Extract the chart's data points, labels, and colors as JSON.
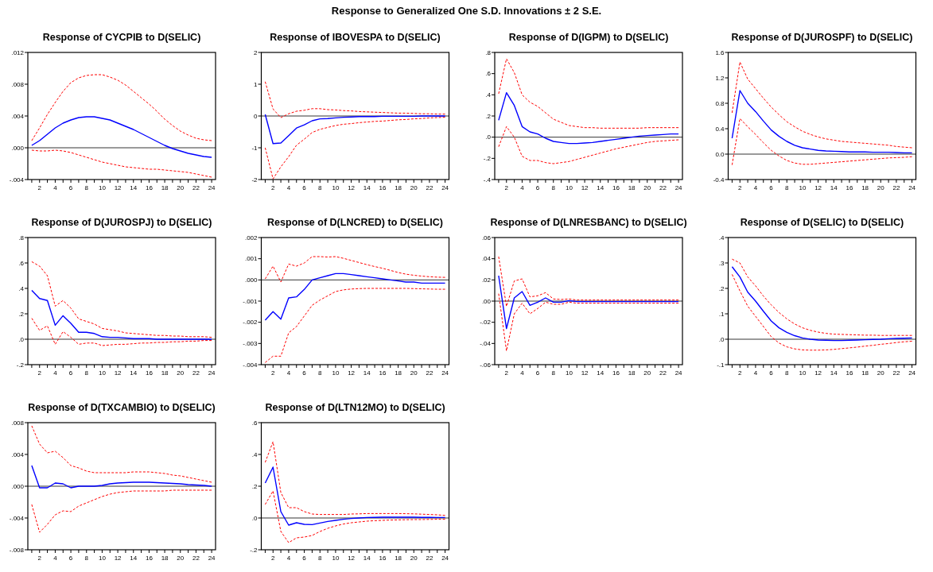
{
  "chart_data": [
    {
      "type": "line",
      "title": "Response of CYCPIB to D(SELIC)",
      "annotations": [
        "Response to Generalized One S.D. Innovations ± 2 S.E."
      ],
      "x": [
        1,
        2,
        3,
        4,
        5,
        6,
        7,
        8,
        9,
        10,
        11,
        12,
        13,
        14,
        15,
        16,
        17,
        18,
        19,
        20,
        21,
        22,
        23,
        24
      ],
      "xlim": [
        0.5,
        24.5
      ],
      "xticks": [
        {
          "value": 1,
          "label": null
        },
        2,
        {
          "value": 3,
          "label": null
        },
        4,
        {
          "value": 5,
          "label": null
        },
        6,
        {
          "value": 7,
          "label": null
        },
        8,
        {
          "value": 9,
          "label": null
        },
        10,
        {
          "value": 11,
          "label": null
        },
        12,
        {
          "value": 13,
          "label": null
        },
        14,
        {
          "value": 15,
          "label": null
        },
        16,
        {
          "value": 17,
          "label": null
        },
        18,
        {
          "value": 19,
          "label": null
        },
        20,
        {
          "value": 21,
          "label": null
        },
        22,
        {
          "value": 23,
          "label": null
        },
        24
      ],
      "ylim": [
        -0.004,
        0.012
      ],
      "yticks": [
        {
          "value": -0.004,
          "label": "-.004"
        },
        {
          "value": 0,
          "label": ".000"
        },
        {
          "value": 0.004,
          "label": ".004"
        },
        {
          "value": 0.008,
          "label": ".008"
        },
        {
          "value": 0.012,
          "label": ".012"
        }
      ],
      "ref_lines": [
        {
          "axis": "y",
          "value": 0,
          "color": "#000000"
        }
      ],
      "series": [
        {
          "color": "#0000ff",
          "line_style": "solid",
          "values": [
            0.0003,
            0.0009,
            0.0017,
            0.0025,
            0.0031,
            0.0035,
            0.0038,
            0.0039,
            0.0039,
            0.0037,
            0.0035,
            0.0031,
            0.0027,
            0.0023,
            0.0018,
            0.0013,
            0.0008,
            0.0003,
            -0.0001,
            -0.0004,
            -0.0007,
            -0.0009,
            -0.0011,
            -0.0012
          ]
        },
        {
          "color": "#ff0000",
          "line_style": "dashed",
          "values": [
            0.0009,
            0.0025,
            0.0042,
            0.0057,
            0.0071,
            0.0082,
            0.0088,
            0.0091,
            0.0092,
            0.0092,
            0.0089,
            0.0085,
            0.0079,
            0.0071,
            0.0063,
            0.0055,
            0.0046,
            0.0036,
            0.0028,
            0.0021,
            0.0016,
            0.0012,
            0.001,
            0.0009
          ]
        },
        {
          "color": "#ff0000",
          "line_style": "dashed",
          "values": [
            -0.0003,
            -0.0004,
            -0.0004,
            -0.0003,
            -0.0004,
            -0.0006,
            -0.0009,
            -0.0012,
            -0.0015,
            -0.0018,
            -0.002,
            -0.0022,
            -0.0024,
            -0.0025,
            -0.0026,
            -0.0027,
            -0.0027,
            -0.0028,
            -0.0029,
            -0.003,
            -0.0031,
            -0.0033,
            -0.0035,
            -0.0037
          ]
        }
      ]
    },
    {
      "type": "line",
      "title": "Response of IBOVESPA to D(SELIC)",
      "x": [
        1,
        2,
        3,
        4,
        5,
        6,
        7,
        8,
        9,
        10,
        11,
        12,
        13,
        14,
        15,
        16,
        17,
        18,
        19,
        20,
        21,
        22,
        23,
        24
      ],
      "xlim": [
        0.5,
        24.5
      ],
      "xticks": [
        {
          "value": 1,
          "label": null
        },
        2,
        {
          "value": 3,
          "label": null
        },
        4,
        {
          "value": 5,
          "label": null
        },
        6,
        {
          "value": 7,
          "label": null
        },
        8,
        {
          "value": 9,
          "label": null
        },
        10,
        {
          "value": 11,
          "label": null
        },
        12,
        {
          "value": 13,
          "label": null
        },
        14,
        {
          "value": 15,
          "label": null
        },
        16,
        {
          "value": 17,
          "label": null
        },
        18,
        {
          "value": 19,
          "label": null
        },
        20,
        {
          "value": 21,
          "label": null
        },
        22,
        {
          "value": 23,
          "label": null
        },
        24
      ],
      "ylim": [
        -2,
        2
      ],
      "yticks": [
        -2,
        -1,
        0,
        1,
        2
      ],
      "ref_lines": [
        {
          "axis": "y",
          "value": 0,
          "color": "#000000"
        }
      ],
      "series": [
        {
          "color": "#0000ff",
          "line_style": "solid",
          "values": [
            0.05,
            -0.87,
            -0.85,
            -0.62,
            -0.38,
            -0.28,
            -0.15,
            -0.09,
            -0.08,
            -0.06,
            -0.04,
            -0.03,
            -0.02,
            -0.02,
            -0.02,
            -0.01,
            -0.01,
            -0.01,
            -0.01,
            -0.01,
            0,
            0,
            0,
            0
          ]
        },
        {
          "color": "#ff0000",
          "line_style": "dashed",
          "values": [
            1.08,
            0.22,
            -0.05,
            0.07,
            0.15,
            0.18,
            0.23,
            0.23,
            0.2,
            0.19,
            0.17,
            0.16,
            0.14,
            0.13,
            0.12,
            0.11,
            0.1,
            0.09,
            0.09,
            0.08,
            0.07,
            0.07,
            0.06,
            0.06
          ]
        },
        {
          "color": "#ff0000",
          "line_style": "dashed",
          "values": [
            -1.0,
            -1.98,
            -1.6,
            -1.28,
            -0.92,
            -0.73,
            -0.52,
            -0.42,
            -0.36,
            -0.3,
            -0.26,
            -0.24,
            -0.21,
            -0.19,
            -0.17,
            -0.16,
            -0.14,
            -0.12,
            -0.11,
            -0.09,
            -0.08,
            -0.06,
            -0.05,
            -0.04
          ]
        }
      ]
    },
    {
      "type": "line",
      "title": "Response of D(IGPM) to D(SELIC)",
      "x": [
        1,
        2,
        3,
        4,
        5,
        6,
        7,
        8,
        9,
        10,
        11,
        12,
        13,
        14,
        15,
        16,
        17,
        18,
        19,
        20,
        21,
        22,
        23,
        24
      ],
      "xlim": [
        0.5,
        24.5
      ],
      "xticks": [
        {
          "value": 1,
          "label": null
        },
        2,
        {
          "value": 3,
          "label": null
        },
        4,
        {
          "value": 5,
          "label": null
        },
        6,
        {
          "value": 7,
          "label": null
        },
        8,
        {
          "value": 9,
          "label": null
        },
        10,
        {
          "value": 11,
          "label": null
        },
        12,
        {
          "value": 13,
          "label": null
        },
        14,
        {
          "value": 15,
          "label": null
        },
        16,
        {
          "value": 17,
          "label": null
        },
        18,
        {
          "value": 19,
          "label": null
        },
        20,
        {
          "value": 21,
          "label": null
        },
        22,
        {
          "value": 23,
          "label": null
        },
        24
      ],
      "ylim": [
        -0.4,
        0.8
      ],
      "yticks": [
        {
          "value": -0.4,
          "label": "-.4"
        },
        {
          "value": -0.2,
          "label": "-.2"
        },
        {
          "value": 0,
          "label": ".0"
        },
        {
          "value": 0.2,
          "label": ".2"
        },
        {
          "value": 0.4,
          "label": ".4"
        },
        {
          "value": 0.6,
          "label": ".6"
        },
        {
          "value": 0.8,
          "label": ".8"
        }
      ],
      "ref_lines": [
        {
          "axis": "y",
          "value": 0,
          "color": "#000000"
        }
      ],
      "series": [
        {
          "color": "#0000ff",
          "line_style": "solid",
          "values": [
            0.16,
            0.42,
            0.3,
            0.1,
            0.05,
            0.03,
            -0.01,
            -0.04,
            -0.05,
            -0.06,
            -0.06,
            -0.055,
            -0.05,
            -0.04,
            -0.03,
            -0.02,
            -0.01,
            0,
            0.01,
            0.015,
            0.02,
            0.025,
            0.03,
            0.03
          ]
        },
        {
          "color": "#ff0000",
          "line_style": "dashed",
          "values": [
            0.41,
            0.74,
            0.61,
            0.4,
            0.33,
            0.29,
            0.23,
            0.17,
            0.14,
            0.11,
            0.1,
            0.09,
            0.09,
            0.085,
            0.085,
            0.085,
            0.085,
            0.085,
            0.085,
            0.09,
            0.09,
            0.09,
            0.09,
            0.09
          ]
        },
        {
          "color": "#ff0000",
          "line_style": "dashed",
          "values": [
            -0.09,
            0.1,
            0,
            -0.18,
            -0.22,
            -0.22,
            -0.24,
            -0.25,
            -0.24,
            -0.23,
            -0.21,
            -0.19,
            -0.17,
            -0.15,
            -0.13,
            -0.11,
            -0.095,
            -0.08,
            -0.065,
            -0.05,
            -0.04,
            -0.035,
            -0.03,
            -0.025
          ]
        }
      ]
    },
    {
      "type": "line",
      "title": "Response of D(JUROSPF) to D(SELIC)",
      "x": [
        1,
        2,
        3,
        4,
        5,
        6,
        7,
        8,
        9,
        10,
        11,
        12,
        13,
        14,
        15,
        16,
        17,
        18,
        19,
        20,
        21,
        22,
        23,
        24
      ],
      "xlim": [
        0.5,
        24.5
      ],
      "xticks": [
        {
          "value": 1,
          "label": null
        },
        2,
        {
          "value": 3,
          "label": null
        },
        4,
        {
          "value": 5,
          "label": null
        },
        6,
        {
          "value": 7,
          "label": null
        },
        8,
        {
          "value": 9,
          "label": null
        },
        10,
        {
          "value": 11,
          "label": null
        },
        12,
        {
          "value": 13,
          "label": null
        },
        14,
        {
          "value": 15,
          "label": null
        },
        16,
        {
          "value": 17,
          "label": null
        },
        18,
        {
          "value": 19,
          "label": null
        },
        20,
        {
          "value": 21,
          "label": null
        },
        22,
        {
          "value": 23,
          "label": null
        },
        24
      ],
      "ylim": [
        -0.4,
        1.6
      ],
      "yticks": [
        -0.4,
        {
          "value": 0,
          "label": "0.0"
        },
        0.4,
        0.8,
        1.2,
        1.6
      ],
      "ref_lines": [
        {
          "axis": "y",
          "value": 0,
          "color": "#000000"
        }
      ],
      "series": [
        {
          "color": "#0000ff",
          "line_style": "solid",
          "values": [
            0.25,
            1.0,
            0.8,
            0.67,
            0.52,
            0.38,
            0.28,
            0.2,
            0.14,
            0.1,
            0.08,
            0.06,
            0.05,
            0.045,
            0.04,
            0.035,
            0.035,
            0.035,
            0.03,
            0.03,
            0.03,
            0.025,
            0.02,
            0.02
          ]
        },
        {
          "color": "#ff0000",
          "line_style": "dashed",
          "values": [
            0.65,
            1.45,
            1.18,
            1.03,
            0.88,
            0.74,
            0.62,
            0.51,
            0.43,
            0.36,
            0.31,
            0.27,
            0.24,
            0.22,
            0.2,
            0.19,
            0.18,
            0.17,
            0.16,
            0.15,
            0.14,
            0.12,
            0.11,
            0.1
          ]
        },
        {
          "color": "#ff0000",
          "line_style": "dashed",
          "values": [
            -0.17,
            0.56,
            0.43,
            0.31,
            0.18,
            0.06,
            -0.03,
            -0.1,
            -0.14,
            -0.16,
            -0.16,
            -0.15,
            -0.14,
            -0.13,
            -0.12,
            -0.11,
            -0.1,
            -0.09,
            -0.08,
            -0.07,
            -0.06,
            -0.055,
            -0.05,
            -0.04
          ]
        }
      ]
    },
    {
      "type": "line",
      "title": "Response of D(JUROSPJ) to D(SELIC)",
      "x": [
        1,
        2,
        3,
        4,
        5,
        6,
        7,
        8,
        9,
        10,
        11,
        12,
        13,
        14,
        15,
        16,
        17,
        18,
        19,
        20,
        21,
        22,
        23,
        24
      ],
      "xlim": [
        0.5,
        24.5
      ],
      "xticks": [
        {
          "value": 1,
          "label": null
        },
        2,
        {
          "value": 3,
          "label": null
        },
        4,
        {
          "value": 5,
          "label": null
        },
        6,
        {
          "value": 7,
          "label": null
        },
        8,
        {
          "value": 9,
          "label": null
        },
        10,
        {
          "value": 11,
          "label": null
        },
        12,
        {
          "value": 13,
          "label": null
        },
        14,
        {
          "value": 15,
          "label": null
        },
        16,
        {
          "value": 17,
          "label": null
        },
        18,
        {
          "value": 19,
          "label": null
        },
        20,
        {
          "value": 21,
          "label": null
        },
        22,
        {
          "value": 23,
          "label": null
        },
        24
      ],
      "ylim": [
        -0.2,
        0.8
      ],
      "yticks": [
        {
          "value": -0.2,
          "label": "-.2"
        },
        {
          "value": 0,
          "label": ".0"
        },
        {
          "value": 0.2,
          "label": ".2"
        },
        {
          "value": 0.4,
          "label": ".4"
        },
        {
          "value": 0.6,
          "label": ".6"
        },
        {
          "value": 0.8,
          "label": ".8"
        }
      ],
      "ref_lines": [
        {
          "axis": "y",
          "value": 0,
          "color": "#000000"
        }
      ],
      "series": [
        {
          "color": "#0000ff",
          "line_style": "solid",
          "values": [
            0.385,
            0.32,
            0.305,
            0.11,
            0.185,
            0.125,
            0.055,
            0.055,
            0.045,
            0.02,
            0.015,
            0.015,
            0.01,
            0.005,
            0.005,
            0.005,
            0,
            0,
            0,
            0,
            0,
            0,
            0,
            0
          ]
        },
        {
          "color": "#ff0000",
          "line_style": "dashed",
          "values": [
            0.61,
            0.575,
            0.5,
            0.26,
            0.305,
            0.245,
            0.16,
            0.14,
            0.12,
            0.085,
            0.075,
            0.065,
            0.05,
            0.045,
            0.04,
            0.035,
            0.03,
            0.03,
            0.025,
            0.025,
            0.02,
            0.02,
            0.02,
            0.015
          ]
        },
        {
          "color": "#ff0000",
          "line_style": "dashed",
          "values": [
            0.165,
            0.07,
            0.105,
            -0.04,
            0.06,
            0.015,
            -0.04,
            -0.03,
            -0.03,
            -0.05,
            -0.045,
            -0.04,
            -0.04,
            -0.035,
            -0.03,
            -0.03,
            -0.025,
            -0.025,
            -0.02,
            -0.02,
            -0.015,
            -0.015,
            -0.01,
            -0.01
          ]
        }
      ]
    },
    {
      "type": "line",
      "title": "Response of D(LNCRED) to D(SELIC)",
      "x": [
        1,
        2,
        3,
        4,
        5,
        6,
        7,
        8,
        9,
        10,
        11,
        12,
        13,
        14,
        15,
        16,
        17,
        18,
        19,
        20,
        21,
        22,
        23,
        24
      ],
      "xlim": [
        0.5,
        24.5
      ],
      "xticks": [
        {
          "value": 1,
          "label": null
        },
        2,
        {
          "value": 3,
          "label": null
        },
        4,
        {
          "value": 5,
          "label": null
        },
        6,
        {
          "value": 7,
          "label": null
        },
        8,
        {
          "value": 9,
          "label": null
        },
        10,
        {
          "value": 11,
          "label": null
        },
        12,
        {
          "value": 13,
          "label": null
        },
        14,
        {
          "value": 15,
          "label": null
        },
        16,
        {
          "value": 17,
          "label": null
        },
        18,
        {
          "value": 19,
          "label": null
        },
        20,
        {
          "value": 21,
          "label": null
        },
        22,
        {
          "value": 23,
          "label": null
        },
        24
      ],
      "ylim": [
        -0.004,
        0.002
      ],
      "yticks": [
        {
          "value": -0.004,
          "label": "-.004"
        },
        {
          "value": -0.003,
          "label": "-.003"
        },
        {
          "value": -0.002,
          "label": "-.002"
        },
        {
          "value": -0.001,
          "label": "-.001"
        },
        {
          "value": 0,
          "label": ".000"
        },
        {
          "value": 0.001,
          "label": ".001"
        },
        {
          "value": 0.002,
          "label": ".002"
        }
      ],
      "ref_lines": [
        {
          "axis": "y",
          "value": 0,
          "color": "#000000"
        }
      ],
      "series": [
        {
          "color": "#0000ff",
          "line_style": "solid",
          "values": [
            -0.0019,
            -0.0015,
            -0.00185,
            -0.00085,
            -0.0008,
            -0.00045,
            0,
            0.0001,
            0.0002,
            0.0003,
            0.0003,
            0.00025,
            0.0002,
            0.00015,
            0.0001,
            5e-05,
            0,
            -5e-05,
            -0.0001,
            -0.0001,
            -0.00015,
            -0.00015,
            -0.00015,
            -0.00015
          ]
        },
        {
          "color": "#ff0000",
          "line_style": "dashed",
          "values": [
            5e-05,
            0.00065,
            -0.0001,
            0.00075,
            0.00065,
            0.0008,
            0.0011,
            0.0011,
            0.00108,
            0.0011,
            0.00102,
            0.00092,
            0.00082,
            0.00072,
            0.00063,
            0.00055,
            0.00045,
            0.00035,
            0.00027,
            0.00022,
            0.00018,
            0.00015,
            0.00013,
            0.00012
          ]
        },
        {
          "color": "#ff0000",
          "line_style": "dashed",
          "values": [
            -0.0039,
            -0.0036,
            -0.0036,
            -0.0025,
            -0.0022,
            -0.0017,
            -0.0012,
            -0.00095,
            -0.00075,
            -0.00055,
            -0.00047,
            -0.00043,
            -0.00041,
            -0.0004,
            -0.0004,
            -0.0004,
            -0.0004,
            -0.0004,
            -0.0004,
            -0.00041,
            -0.00042,
            -0.00043,
            -0.00044,
            -0.00044
          ]
        }
      ]
    },
    {
      "type": "line",
      "title": "Response of D(LNRESBANC) to D(SELIC)",
      "x": [
        1,
        2,
        3,
        4,
        5,
        6,
        7,
        8,
        9,
        10,
        11,
        12,
        13,
        14,
        15,
        16,
        17,
        18,
        19,
        20,
        21,
        22,
        23,
        24
      ],
      "xlim": [
        0.5,
        24.5
      ],
      "xticks": [
        {
          "value": 1,
          "label": null
        },
        2,
        {
          "value": 3,
          "label": null
        },
        4,
        {
          "value": 5,
          "label": null
        },
        6,
        {
          "value": 7,
          "label": null
        },
        8,
        {
          "value": 9,
          "label": null
        },
        10,
        {
          "value": 11,
          "label": null
        },
        12,
        {
          "value": 13,
          "label": null
        },
        14,
        {
          "value": 15,
          "label": null
        },
        16,
        {
          "value": 17,
          "label": null
        },
        18,
        {
          "value": 19,
          "label": null
        },
        20,
        {
          "value": 21,
          "label": null
        },
        22,
        {
          "value": 23,
          "label": null
        },
        24
      ],
      "ylim": [
        -0.06,
        0.06
      ],
      "yticks": [
        {
          "value": -0.06,
          "label": "-.06"
        },
        {
          "value": -0.04,
          "label": "-.04"
        },
        {
          "value": -0.02,
          "label": "-.02"
        },
        {
          "value": 0,
          "label": ".00"
        },
        {
          "value": 0.02,
          "label": ".02"
        },
        {
          "value": 0.04,
          "label": ".04"
        },
        {
          "value": 0.06,
          "label": ".06"
        }
      ],
      "ref_lines": [
        {
          "axis": "y",
          "value": 0,
          "color": "#000000"
        }
      ],
      "series": [
        {
          "color": "#0000ff",
          "line_style": "solid",
          "values": [
            0.024,
            -0.026,
            0.003,
            0.009,
            -0.004,
            -0.001,
            0.003,
            -0.001,
            -0.001,
            0.0005,
            -0.0005,
            -0.0005,
            -0.0005,
            -0.0005,
            -0.0005,
            -0.0005,
            -0.0005,
            -0.0005,
            -0.0005,
            -0.0005,
            -0.0005,
            -0.0005,
            -0.0005,
            -0.0005
          ]
        },
        {
          "color": "#ff0000",
          "line_style": "dashed",
          "values": [
            0.042,
            -0.005,
            0.019,
            0.021,
            0.004,
            0.005,
            0.008,
            0.002,
            0.0015,
            0.002,
            0.001,
            0.001,
            0.001,
            0.001,
            0.001,
            0.001,
            0.001,
            0.001,
            0.001,
            0.001,
            0.001,
            0.001,
            0.001,
            0.001
          ]
        },
        {
          "color": "#ff0000",
          "line_style": "dashed",
          "values": [
            0.007,
            -0.047,
            -0.012,
            -0.002,
            -0.012,
            -0.007,
            -0.001,
            -0.003,
            -0.003,
            -0.001,
            -0.002,
            -0.002,
            -0.002,
            -0.002,
            -0.002,
            -0.002,
            -0.002,
            -0.002,
            -0.002,
            -0.002,
            -0.002,
            -0.002,
            -0.002,
            -0.002
          ]
        }
      ]
    },
    {
      "type": "line",
      "title": "Response of D(SELIC) to D(SELIC)",
      "x": [
        1,
        2,
        3,
        4,
        5,
        6,
        7,
        8,
        9,
        10,
        11,
        12,
        13,
        14,
        15,
        16,
        17,
        18,
        19,
        20,
        21,
        22,
        23,
        24
      ],
      "xlim": [
        0.5,
        24.5
      ],
      "xticks": [
        {
          "value": 1,
          "label": null
        },
        2,
        {
          "value": 3,
          "label": null
        },
        4,
        {
          "value": 5,
          "label": null
        },
        6,
        {
          "value": 7,
          "label": null
        },
        8,
        {
          "value": 9,
          "label": null
        },
        10,
        {
          "value": 11,
          "label": null
        },
        12,
        {
          "value": 13,
          "label": null
        },
        14,
        {
          "value": 15,
          "label": null
        },
        16,
        {
          "value": 17,
          "label": null
        },
        18,
        {
          "value": 19,
          "label": null
        },
        20,
        {
          "value": 21,
          "label": null
        },
        22,
        {
          "value": 23,
          "label": null
        },
        24
      ],
      "ylim": [
        -0.1,
        0.4
      ],
      "yticks": [
        {
          "value": -0.1,
          "label": "-.1"
        },
        {
          "value": 0,
          "label": ".0"
        },
        {
          "value": 0.1,
          "label": ".1"
        },
        {
          "value": 0.2,
          "label": ".2"
        },
        {
          "value": 0.3,
          "label": ".3"
        },
        {
          "value": 0.4,
          "label": ".4"
        }
      ],
      "ref_lines": [
        {
          "axis": "y",
          "value": 0,
          "color": "#000000"
        }
      ],
      "series": [
        {
          "color": "#0000ff",
          "line_style": "solid",
          "values": [
            0.285,
            0.245,
            0.185,
            0.15,
            0.11,
            0.072,
            0.045,
            0.027,
            0.014,
            0.005,
            0,
            -0.003,
            -0.004,
            -0.005,
            -0.005,
            -0.004,
            -0.003,
            -0.002,
            -0.001,
            0,
            0.002,
            0.003,
            0.004,
            0.005
          ]
        },
        {
          "color": "#ff0000",
          "line_style": "dashed",
          "values": [
            0.315,
            0.3,
            0.245,
            0.21,
            0.17,
            0.135,
            0.105,
            0.08,
            0.06,
            0.045,
            0.035,
            0.028,
            0.023,
            0.02,
            0.019,
            0.018,
            0.017,
            0.016,
            0.016,
            0.015,
            0.015,
            0.015,
            0.015,
            0.015
          ]
        },
        {
          "color": "#ff0000",
          "line_style": "dashed",
          "values": [
            0.255,
            0.19,
            0.13,
            0.09,
            0.05,
            0.01,
            -0.015,
            -0.03,
            -0.038,
            -0.042,
            -0.043,
            -0.043,
            -0.042,
            -0.04,
            -0.037,
            -0.034,
            -0.031,
            -0.027,
            -0.024,
            -0.02,
            -0.017,
            -0.013,
            -0.01,
            -0.008
          ]
        }
      ]
    },
    {
      "type": "line",
      "title": "Response of D(TXCAMBIO) to D(SELIC)",
      "x": [
        1,
        2,
        3,
        4,
        5,
        6,
        7,
        8,
        9,
        10,
        11,
        12,
        13,
        14,
        15,
        16,
        17,
        18,
        19,
        20,
        21,
        22,
        23,
        24
      ],
      "xlim": [
        0.5,
        24.5
      ],
      "xticks": [
        {
          "value": 1,
          "label": null
        },
        2,
        {
          "value": 3,
          "label": null
        },
        4,
        {
          "value": 5,
          "label": null
        },
        6,
        {
          "value": 7,
          "label": null
        },
        8,
        {
          "value": 9,
          "label": null
        },
        10,
        {
          "value": 11,
          "label": null
        },
        12,
        {
          "value": 13,
          "label": null
        },
        14,
        {
          "value": 15,
          "label": null
        },
        16,
        {
          "value": 17,
          "label": null
        },
        18,
        {
          "value": 19,
          "label": null
        },
        20,
        {
          "value": 21,
          "label": null
        },
        22,
        {
          "value": 23,
          "label": null
        },
        24
      ],
      "ylim": [
        -0.008,
        0.008
      ],
      "yticks": [
        {
          "value": -0.008,
          "label": "-.008"
        },
        {
          "value": -0.004,
          "label": "-.004"
        },
        {
          "value": 0,
          "label": ".000"
        },
        {
          "value": 0.004,
          "label": ".004"
        },
        {
          "value": 0.008,
          "label": ".008"
        }
      ],
      "ref_lines": [
        {
          "axis": "y",
          "value": 0,
          "color": "#000000"
        }
      ],
      "series": [
        {
          "color": "#0000ff",
          "line_style": "solid",
          "values": [
            0.0026,
            -0.0002,
            -0.0002,
            0.0004,
            0.0003,
            -0.0002,
            0,
            0,
            0,
            0.0001,
            0.0003,
            0.0004,
            0.00045,
            0.0005,
            0.0005,
            0.0005,
            0.00045,
            0.0004,
            0.00035,
            0.0003,
            0.0002,
            0.00015,
            0.0001,
            0
          ]
        },
        {
          "color": "#ff0000",
          "line_style": "dashed",
          "values": [
            0.0076,
            0.0053,
            0.0042,
            0.0044,
            0.0036,
            0.0026,
            0.0023,
            0.0019,
            0.0017,
            0.0017,
            0.0017,
            0.0017,
            0.0017,
            0.0018,
            0.0018,
            0.0018,
            0.0017,
            0.0016,
            0.0014,
            0.0013,
            0.0011,
            0.0009,
            0.0007,
            0.0005
          ]
        },
        {
          "color": "#ff0000",
          "line_style": "dashed",
          "values": [
            -0.0023,
            -0.0058,
            -0.0048,
            -0.0036,
            -0.0031,
            -0.0032,
            -0.0025,
            -0.0021,
            -0.0017,
            -0.0013,
            -0.001,
            -0.0008,
            -0.0007,
            -0.0006,
            -0.0006,
            -0.0006,
            -0.0006,
            -0.0006,
            -0.0005,
            -0.0005,
            -0.0005,
            -0.0005,
            -0.0005,
            -0.0005
          ]
        }
      ]
    },
    {
      "type": "line",
      "title": "Response of D(LTN12MO) to D(SELIC)",
      "x": [
        1,
        2,
        3,
        4,
        5,
        6,
        7,
        8,
        9,
        10,
        11,
        12,
        13,
        14,
        15,
        16,
        17,
        18,
        19,
        20,
        21,
        22,
        23,
        24
      ],
      "xlim": [
        0.5,
        24.5
      ],
      "xticks": [
        {
          "value": 1,
          "label": null
        },
        2,
        {
          "value": 3,
          "label": null
        },
        4,
        {
          "value": 5,
          "label": null
        },
        6,
        {
          "value": 7,
          "label": null
        },
        8,
        {
          "value": 9,
          "label": null
        },
        10,
        {
          "value": 11,
          "label": null
        },
        12,
        {
          "value": 13,
          "label": null
        },
        14,
        {
          "value": 15,
          "label": null
        },
        16,
        {
          "value": 17,
          "label": null
        },
        18,
        {
          "value": 19,
          "label": null
        },
        20,
        {
          "value": 21,
          "label": null
        },
        22,
        {
          "value": 23,
          "label": null
        },
        24
      ],
      "ylim": [
        -0.2,
        0.6
      ],
      "yticks": [
        {
          "value": -0.2,
          "label": "-.2"
        },
        {
          "value": 0,
          "label": ".0"
        },
        {
          "value": 0.2,
          "label": ".2"
        },
        {
          "value": 0.4,
          "label": ".4"
        },
        {
          "value": 0.6,
          "label": ".6"
        }
      ],
      "ref_lines": [
        {
          "axis": "y",
          "value": 0,
          "color": "#000000"
        }
      ],
      "series": [
        {
          "color": "#0000ff",
          "line_style": "solid",
          "values": [
            0.22,
            0.32,
            0.04,
            -0.045,
            -0.03,
            -0.04,
            -0.042,
            -0.032,
            -0.022,
            -0.015,
            -0.008,
            -0.003,
            0,
            0.003,
            0.004,
            0.005,
            0.005,
            0.005,
            0.005,
            0.005,
            0.004,
            0.004,
            0.003,
            0.003
          ]
        },
        {
          "color": "#ff0000",
          "line_style": "dashed",
          "values": [
            0.35,
            0.48,
            0.16,
            0.065,
            0.065,
            0.04,
            0.025,
            0.022,
            0.022,
            0.022,
            0.022,
            0.025,
            0.026,
            0.028,
            0.028,
            0.028,
            0.028,
            0.028,
            0.027,
            0.026,
            0.024,
            0.022,
            0.02,
            0.016
          ]
        },
        {
          "color": "#ff0000",
          "line_style": "dashed",
          "values": [
            0.085,
            0.17,
            -0.085,
            -0.155,
            -0.125,
            -0.12,
            -0.11,
            -0.085,
            -0.065,
            -0.05,
            -0.038,
            -0.03,
            -0.025,
            -0.02,
            -0.017,
            -0.015,
            -0.013,
            -0.012,
            -0.011,
            -0.01,
            -0.01,
            -0.009,
            -0.008,
            -0.008
          ]
        }
      ]
    }
  ]
}
